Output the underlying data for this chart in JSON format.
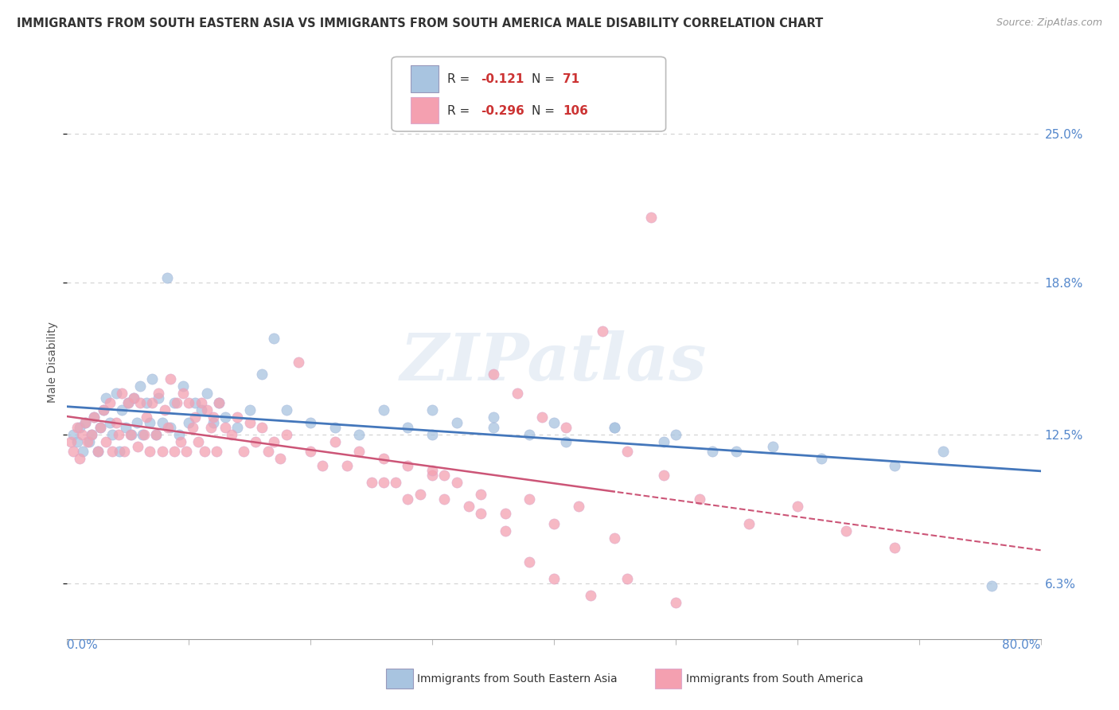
{
  "title": "IMMIGRANTS FROM SOUTH EASTERN ASIA VS IMMIGRANTS FROM SOUTH AMERICA MALE DISABILITY CORRELATION CHART",
  "source": "Source: ZipAtlas.com",
  "series1_name": "Immigrants from South Eastern Asia",
  "series1_color": "#a8c4e0",
  "series1_line_color": "#4477bb",
  "series1_R": -0.121,
  "series1_N": 71,
  "series2_name": "Immigrants from South America",
  "series2_color": "#f4a0b0",
  "series2_line_color": "#cc5577",
  "series2_R": -0.296,
  "series2_N": 106,
  "xlim": [
    0.0,
    0.8
  ],
  "ylim": [
    0.04,
    0.27
  ],
  "yticks": [
    0.063,
    0.125,
    0.188,
    0.25
  ],
  "ytick_labels": [
    "6.3%",
    "12.5%",
    "18.8%",
    "25.0%"
  ],
  "ylabel": "Male Disability",
  "background_color": "#ffffff",
  "watermark": "ZIPatlas",
  "series1_x": [
    0.005,
    0.008,
    0.01,
    0.013,
    0.015,
    0.018,
    0.02,
    0.022,
    0.025,
    0.027,
    0.03,
    0.032,
    0.035,
    0.037,
    0.04,
    0.043,
    0.045,
    0.048,
    0.05,
    0.053,
    0.055,
    0.057,
    0.06,
    0.062,
    0.065,
    0.068,
    0.07,
    0.073,
    0.075,
    0.078,
    0.082,
    0.085,
    0.088,
    0.092,
    0.095,
    0.1,
    0.105,
    0.11,
    0.115,
    0.12,
    0.125,
    0.13,
    0.14,
    0.15,
    0.16,
    0.17,
    0.18,
    0.2,
    0.22,
    0.24,
    0.26,
    0.28,
    0.3,
    0.32,
    0.35,
    0.38,
    0.41,
    0.45,
    0.49,
    0.53,
    0.58,
    0.3,
    0.35,
    0.4,
    0.45,
    0.5,
    0.55,
    0.62,
    0.68,
    0.72,
    0.76
  ],
  "series1_y": [
    0.125,
    0.122,
    0.128,
    0.118,
    0.13,
    0.122,
    0.125,
    0.132,
    0.118,
    0.128,
    0.135,
    0.14,
    0.13,
    0.125,
    0.142,
    0.118,
    0.135,
    0.128,
    0.138,
    0.125,
    0.14,
    0.13,
    0.145,
    0.125,
    0.138,
    0.13,
    0.148,
    0.125,
    0.14,
    0.13,
    0.19,
    0.128,
    0.138,
    0.125,
    0.145,
    0.13,
    0.138,
    0.135,
    0.142,
    0.13,
    0.138,
    0.132,
    0.128,
    0.135,
    0.15,
    0.165,
    0.135,
    0.13,
    0.128,
    0.125,
    0.135,
    0.128,
    0.125,
    0.13,
    0.128,
    0.125,
    0.122,
    0.128,
    0.122,
    0.118,
    0.12,
    0.135,
    0.132,
    0.13,
    0.128,
    0.125,
    0.118,
    0.115,
    0.112,
    0.118,
    0.062
  ],
  "series2_x": [
    0.003,
    0.005,
    0.008,
    0.01,
    0.012,
    0.015,
    0.017,
    0.02,
    0.022,
    0.025,
    0.027,
    0.03,
    0.032,
    0.035,
    0.037,
    0.04,
    0.042,
    0.045,
    0.047,
    0.05,
    0.052,
    0.055,
    0.058,
    0.06,
    0.063,
    0.065,
    0.068,
    0.07,
    0.073,
    0.075,
    0.078,
    0.08,
    0.083,
    0.085,
    0.088,
    0.09,
    0.093,
    0.095,
    0.098,
    0.1,
    0.103,
    0.105,
    0.108,
    0.11,
    0.113,
    0.115,
    0.118,
    0.12,
    0.123,
    0.125,
    0.13,
    0.135,
    0.14,
    0.145,
    0.15,
    0.155,
    0.16,
    0.165,
    0.17,
    0.175,
    0.18,
    0.19,
    0.2,
    0.21,
    0.22,
    0.23,
    0.24,
    0.25,
    0.26,
    0.27,
    0.28,
    0.29,
    0.3,
    0.31,
    0.32,
    0.33,
    0.34,
    0.36,
    0.38,
    0.4,
    0.42,
    0.45,
    0.35,
    0.37,
    0.39,
    0.41,
    0.46,
    0.49,
    0.44,
    0.48,
    0.52,
    0.56,
    0.6,
    0.64,
    0.68,
    0.3,
    0.26,
    0.28,
    0.31,
    0.34,
    0.36,
    0.38,
    0.4,
    0.43,
    0.46,
    0.5
  ],
  "series2_y": [
    0.122,
    0.118,
    0.128,
    0.115,
    0.125,
    0.13,
    0.122,
    0.125,
    0.132,
    0.118,
    0.128,
    0.135,
    0.122,
    0.138,
    0.118,
    0.13,
    0.125,
    0.142,
    0.118,
    0.138,
    0.125,
    0.14,
    0.12,
    0.138,
    0.125,
    0.132,
    0.118,
    0.138,
    0.125,
    0.142,
    0.118,
    0.135,
    0.128,
    0.148,
    0.118,
    0.138,
    0.122,
    0.142,
    0.118,
    0.138,
    0.128,
    0.132,
    0.122,
    0.138,
    0.118,
    0.135,
    0.128,
    0.132,
    0.118,
    0.138,
    0.128,
    0.125,
    0.132,
    0.118,
    0.13,
    0.122,
    0.128,
    0.118,
    0.122,
    0.115,
    0.125,
    0.155,
    0.118,
    0.112,
    0.122,
    0.112,
    0.118,
    0.105,
    0.115,
    0.105,
    0.112,
    0.1,
    0.108,
    0.098,
    0.105,
    0.095,
    0.1,
    0.092,
    0.098,
    0.088,
    0.095,
    0.082,
    0.15,
    0.142,
    0.132,
    0.128,
    0.118,
    0.108,
    0.168,
    0.215,
    0.098,
    0.088,
    0.095,
    0.085,
    0.078,
    0.11,
    0.105,
    0.098,
    0.108,
    0.092,
    0.085,
    0.072,
    0.065,
    0.058,
    0.065,
    0.055
  ]
}
